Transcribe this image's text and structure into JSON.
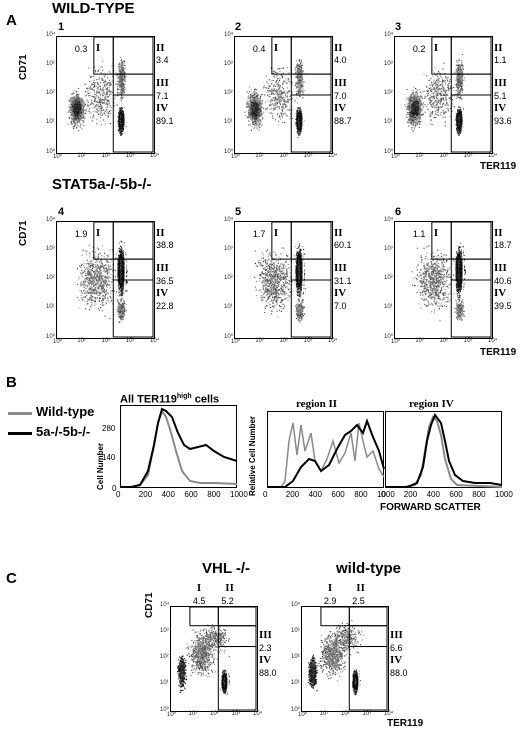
{
  "panel_a": {
    "letter": "A",
    "wt_heading": "WILD-TYPE",
    "ko_heading": "STAT5a-/-5b-/-",
    "y_axis": "CD71",
    "x_axis": "TER119",
    "gate_names": [
      "I",
      "II",
      "III",
      "IV"
    ],
    "plots": [
      {
        "id": "1",
        "values": [
          "0.3",
          "3.4",
          "7.1",
          "89.1"
        ]
      },
      {
        "id": "2",
        "values": [
          "0.4",
          "4.0",
          "7.0",
          "88.7"
        ]
      },
      {
        "id": "3",
        "values": [
          "0.2",
          "1.1",
          "5.1",
          "93.6"
        ]
      },
      {
        "id": "4",
        "values": [
          "1.9",
          "38.8",
          "36.5",
          "22.8"
        ]
      },
      {
        "id": "5",
        "values": [
          "1.7",
          "60.1",
          "31.1",
          "7.0"
        ]
      },
      {
        "id": "6",
        "values": [
          "1.1",
          "18.7",
          "40.6",
          "39.5"
        ]
      }
    ],
    "ticks": [
      "10⁰",
      "10¹",
      "10²",
      "10³",
      "10⁴"
    ]
  },
  "panel_b": {
    "letter": "B",
    "legend": [
      "Wild-type",
      "5a-/-5b-/-"
    ],
    "legend_colors": [
      "#8a8a8a",
      "#000000"
    ],
    "plot1_title_prefix": "All TER119",
    "plot1_title_sup": "high",
    "plot1_title_suffix": "cells",
    "plot1_ylabel": "Cell Number",
    "plot1_yticks": [
      "0",
      "140",
      "280"
    ],
    "plot2_title": "region II",
    "plot2_ylabel": "Relative Cell Number",
    "plot3_title": "region IV",
    "xticks": [
      "0",
      "200",
      "400",
      "600",
      "800",
      "1000"
    ],
    "xlabel": "FORWARD SCATTER"
  },
  "panel_c": {
    "letter": "C",
    "y_axis": "CD71",
    "x_axis": "TER119",
    "plots": [
      {
        "title": "VHL -/-",
        "values": [
          "4.5",
          "5.2",
          "2.3",
          "88.0"
        ]
      },
      {
        "title": "wild-type",
        "values": [
          "2.9",
          "2.5",
          "6.6",
          "88.0"
        ]
      }
    ]
  }
}
